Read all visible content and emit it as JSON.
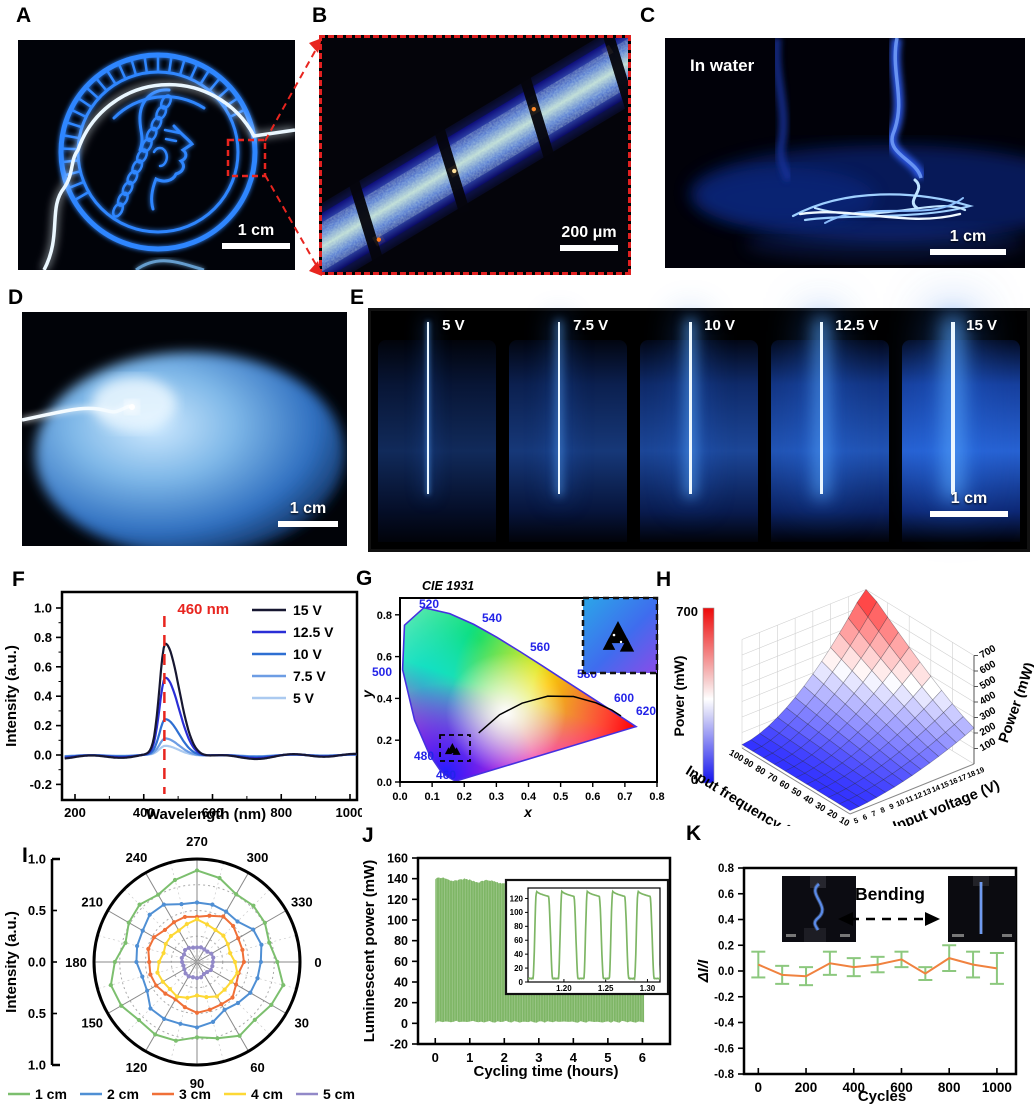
{
  "figure": {
    "panels": {
      "a": {
        "label": "A",
        "scale_bar": "1 cm"
      },
      "b": {
        "label": "B",
        "scale_bar": "200 μm"
      },
      "c": {
        "label": "C",
        "overlay": "In water",
        "scale_bar": "1 cm"
      },
      "d": {
        "label": "D",
        "scale_bar": "1 cm"
      },
      "e": {
        "label": "E",
        "scale_bar": "1 cm",
        "voltages": [
          "5 V",
          "7.5 V",
          "10 V",
          "12.5 V",
          "15 V"
        ]
      },
      "f": {
        "label": "F"
      },
      "g": {
        "label": "G"
      },
      "h": {
        "label": "H"
      },
      "i": {
        "label": "I"
      },
      "j": {
        "label": "J"
      },
      "k": {
        "label": "K"
      }
    }
  },
  "chart_data": [
    {
      "id": "F",
      "type": "line",
      "xlabel": "Wavelength (nm)",
      "ylabel": "Intensity (a.u.)",
      "xlim": [
        150,
        1060
      ],
      "ylim": [
        -0.31,
        1.12
      ],
      "xticks": [
        200,
        400,
        600,
        800,
        1000
      ],
      "yticks": [
        1.0,
        0.8,
        0.6,
        0.4,
        0.2,
        0.0,
        -0.2
      ],
      "peak_nm": 460,
      "peak_annotation": "460 nm",
      "annotation_color": "#e8251f",
      "legend_position": "top-right",
      "grid": false,
      "series": [
        {
          "name": "15 V",
          "color": "#171731",
          "peak_intensity": 0.75
        },
        {
          "name": "12.5 V",
          "color": "#2a2ed6",
          "peak_intensity": 0.52
        },
        {
          "name": "10 V",
          "color": "#2e6fd2",
          "peak_intensity": 0.24
        },
        {
          "name": "7.5 V",
          "color": "#6d9de4",
          "peak_intensity": 0.11
        },
        {
          "name": "5 V",
          "color": "#abcaf0",
          "peak_intensity": 0.06
        }
      ]
    },
    {
      "id": "G",
      "type": "chromaticity",
      "title": "CIE 1931",
      "xlabel": "x",
      "ylabel": "y",
      "xlim": [
        0,
        0.8
      ],
      "ylim": [
        0,
        0.88
      ],
      "xticks": [
        0.0,
        0.1,
        0.2,
        0.3,
        0.4,
        0.5,
        0.6,
        0.7,
        0.8
      ],
      "yticks": [
        0.0,
        0.2,
        0.4,
        0.6,
        0.8
      ],
      "wavelength_labels": [
        "460",
        "480",
        "500",
        "520",
        "540",
        "560",
        "580",
        "600",
        "620"
      ],
      "wavelength_label_color": "#2323e8",
      "marker": {
        "x": 0.163,
        "y": 0.155,
        "color": "#000000",
        "symbol": "triangle"
      },
      "spectral_locus": [
        [
          0.1741,
          0.005
        ],
        [
          0.1644,
          0.0109
        ],
        [
          0.144,
          0.0297
        ],
        [
          0.1241,
          0.0578
        ],
        [
          0.0913,
          0.1327
        ],
        [
          0.0454,
          0.295
        ],
        [
          0.0082,
          0.5384
        ],
        [
          0.0139,
          0.7502
        ],
        [
          0.0743,
          0.8338
        ],
        [
          0.1547,
          0.8059
        ],
        [
          0.2296,
          0.7543
        ],
        [
          0.3016,
          0.6923
        ],
        [
          0.3731,
          0.6245
        ],
        [
          0.4441,
          0.5547
        ],
        [
          0.5125,
          0.4866
        ],
        [
          0.5752,
          0.4242
        ],
        [
          0.627,
          0.3725
        ],
        [
          0.6915,
          0.3083
        ],
        [
          0.7347,
          0.2653
        ]
      ],
      "planckian_locus": [
        [
          0.245,
          0.235
        ],
        [
          0.31,
          0.322
        ],
        [
          0.38,
          0.377
        ],
        [
          0.46,
          0.411
        ],
        [
          0.54,
          0.409
        ],
        [
          0.61,
          0.379
        ],
        [
          0.66,
          0.344
        ],
        [
          0.688,
          0.316
        ]
      ]
    },
    {
      "id": "H",
      "type": "surface",
      "xlabel": "Input frequency (kHz)",
      "ylabel": "Input voltage (V)",
      "zlabel": "Power (mW)",
      "x_ticks": [
        100,
        90,
        80,
        70,
        60,
        50,
        40,
        30,
        20,
        10
      ],
      "y_ticks": [
        5,
        6,
        7,
        8,
        9,
        10,
        11,
        12,
        13,
        14,
        15,
        16,
        17,
        18,
        19
      ],
      "z_ticks": [
        100,
        200,
        300,
        400,
        500,
        600,
        700
      ],
      "zlim": [
        0,
        700
      ],
      "colorbar": {
        "label": "Power (mW)",
        "max_label": "700",
        "min_label": "0",
        "max_color": "#ee0a0a",
        "mid_color": "#ffffff",
        "min_color": "#1212ee"
      }
    },
    {
      "id": "I",
      "type": "polar",
      "ylabel": "Intensity (a.u.)",
      "radial_axis_ticks": [
        "1.0",
        "0.5",
        "0.0",
        "0.5",
        "1.0"
      ],
      "angle_ticks_deg": [
        0,
        30,
        60,
        90,
        120,
        150,
        180,
        210,
        240,
        270,
        300,
        330
      ],
      "series": [
        {
          "name": "1 cm",
          "color": "#7cbf6e",
          "mean_radius": 0.8
        },
        {
          "name": "2 cm",
          "color": "#4f8fd4",
          "mean_radius": 0.6
        },
        {
          "name": "3 cm",
          "color": "#f07038",
          "mean_radius": 0.46
        },
        {
          "name": "4 cm",
          "color": "#fdd835",
          "mean_radius": 0.37
        },
        {
          "name": "5 cm",
          "color": "#9289c8",
          "mean_radius": 0.15
        }
      ]
    },
    {
      "id": "J",
      "type": "area",
      "xlabel": "Cycling time (hours)",
      "ylabel": "Luminescent power (mW)",
      "xlim": [
        -0.5,
        6.8
      ],
      "ylim": [
        -20,
        160
      ],
      "xticks": [
        0,
        1,
        2,
        3,
        4,
        5,
        6
      ],
      "yticks": [
        160,
        140,
        120,
        100,
        80,
        60,
        40,
        20,
        0,
        -20
      ],
      "color": "#7eb665",
      "envelope": {
        "t_start": 0,
        "t_end": 6.05,
        "max_start": 140,
        "max_end": 130,
        "min": 0
      },
      "inset": {
        "yticks": [
          120,
          100,
          80,
          60,
          40,
          20,
          0
        ],
        "xticks": [
          "1.20",
          "1.25",
          "1.30"
        ],
        "pulse_high": 128,
        "pulse_low": 5,
        "pulses_shown": 5
      }
    },
    {
      "id": "K",
      "type": "line",
      "xlabel": "Cycles",
      "ylabel": "ΔI/I",
      "annotation": "Bending",
      "xlim": [
        -60,
        1080
      ],
      "ylim": [
        -0.8,
        0.8
      ],
      "xticks": [
        0,
        200,
        400,
        600,
        800,
        1000
      ],
      "yticks": [
        0.8,
        0.6,
        0.4,
        0.2,
        0.0,
        -0.2,
        -0.4,
        -0.6,
        -0.8
      ],
      "line_color": "#f0823f",
      "error_color": "#8cc87e",
      "x": [
        0,
        100,
        200,
        300,
        400,
        500,
        600,
        700,
        800,
        900,
        1000
      ],
      "y": [
        0.05,
        -0.03,
        -0.04,
        0.06,
        0.03,
        0.05,
        0.09,
        -0.02,
        0.1,
        0.05,
        0.02
      ],
      "yerr": [
        0.1,
        0.07,
        0.07,
        0.09,
        0.07,
        0.06,
        0.06,
        0.05,
        0.1,
        0.1,
        0.12
      ]
    }
  ]
}
